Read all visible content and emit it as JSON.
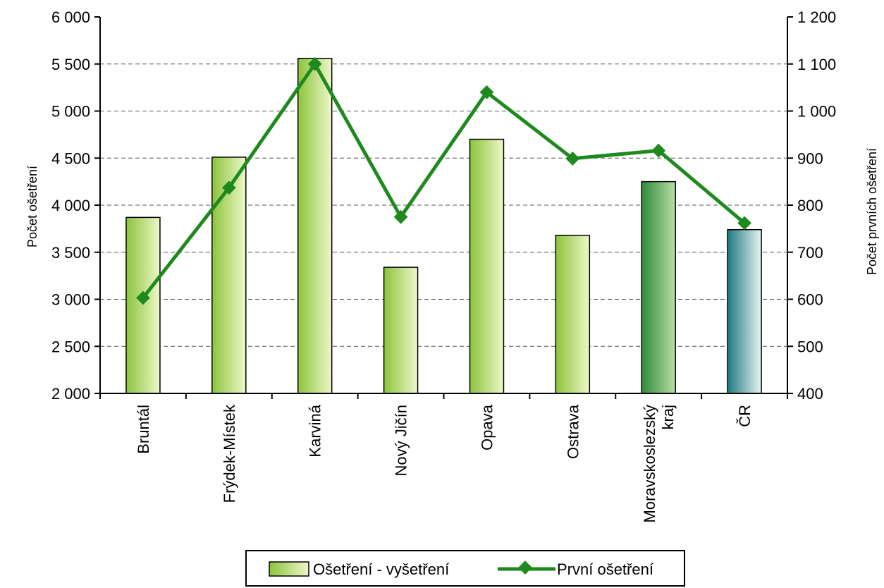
{
  "chart_data": {
    "type": "bar",
    "categories": [
      [
        "Bruntál"
      ],
      [
        "Frýdek-Místek"
      ],
      [
        "Karviná"
      ],
      [
        "Nový Jičín"
      ],
      [
        "Opava"
      ],
      [
        "Ostrava"
      ],
      [
        "Moravskoslezský",
        "kraj"
      ],
      [
        "ČR"
      ]
    ],
    "series": [
      {
        "name": "Ošetření - vyšetření",
        "type": "bar",
        "axis": "left",
        "values": [
          3870,
          4510,
          5560,
          3340,
          4700,
          3680,
          4250,
          3740
        ]
      },
      {
        "name": "První ošetření",
        "type": "line",
        "axis": "right",
        "values": [
          603,
          837,
          1100,
          775,
          1040,
          899,
          916,
          762
        ]
      }
    ],
    "y_left": {
      "label": "Počet ošetření",
      "min": 2000,
      "max": 6000,
      "step": 500,
      "tick_labels": [
        "2 000",
        "2 500",
        "3 000",
        "3 500",
        "4 000",
        "4 500",
        "5 000",
        "5 500",
        "6 000"
      ]
    },
    "y_right": {
      "label": "Počet prvních ošetření",
      "min": 400,
      "max": 1200,
      "step": 100,
      "tick_labels": [
        "400",
        "500",
        "600",
        "700",
        "800",
        "900",
        "1 000",
        "1 100",
        "1 200"
      ]
    },
    "grid": "dashed horizontal",
    "legend": "bottom",
    "colors": {
      "bar_light": "#eef7c9",
      "bar_dark": "#8cc43c",
      "region_dark": "#2e8b3a",
      "region_light": "#b8dfa6",
      "cr_dark": "#1f7a80",
      "cr_light": "#e6f4f2",
      "line": "#1e8a1e",
      "grid": "#555555"
    }
  }
}
